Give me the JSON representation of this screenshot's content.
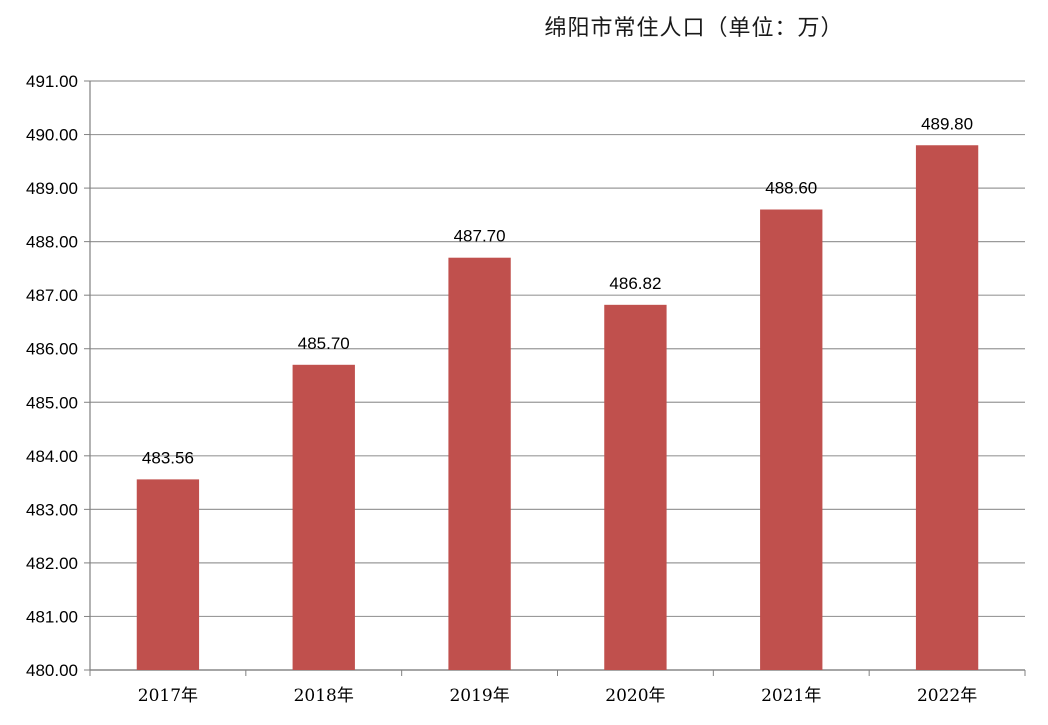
{
  "chart_data": {
    "type": "bar",
    "title": "绵阳市常住人口（单位：万）",
    "xlabel": "",
    "ylabel": "",
    "categories": [
      "2017年",
      "2018年",
      "2019年",
      "2020年",
      "2021年",
      "2022年"
    ],
    "values": [
      483.56,
      485.7,
      487.7,
      486.82,
      488.6,
      489.8
    ],
    "data_labels": [
      "483.56",
      "485.70",
      "487.70",
      "486.82",
      "488.60",
      "489.80"
    ],
    "ylim": [
      480,
      491
    ],
    "yticks": [
      "480.00",
      "481.00",
      "482.00",
      "483.00",
      "484.00",
      "485.00",
      "486.00",
      "487.00",
      "488.00",
      "489.00",
      "490.00",
      "491.00"
    ],
    "grid": true,
    "legend": "none",
    "bar_color": "#C0504D"
  }
}
